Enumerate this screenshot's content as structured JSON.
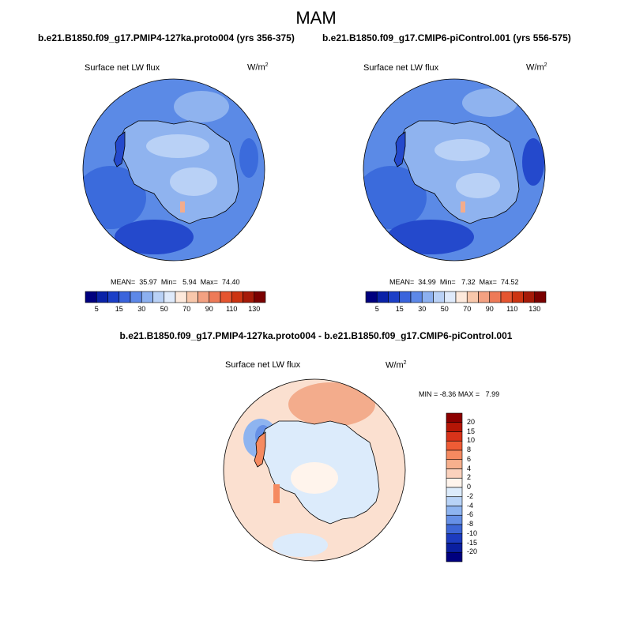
{
  "figure": {
    "season": "MAM",
    "colors": {
      "c_3": "#2449cc",
      "c_4": "#3b6bdc",
      "c_5": "#5b8ae6",
      "c_6": "#8fb3ef",
      "c_8": "#f4cdb4",
      "c_9": "#f3ac8c",
      "c_10": "#ee7c5a",
      "c_11": "#e24a2a",
      "c_12": "#c52d15"
    }
  },
  "panel_left": {
    "case": "b.e21.B1850.f09_g17.PMIP4-127ka.proto004 (yrs 356-375)",
    "variable": "Surface net LW flux",
    "units": "W/m",
    "units_exp": "2",
    "mean_label": "MEAN=",
    "mean": "35.97",
    "min_label": "Min=",
    "min": "5.94",
    "max_label": "Max=",
    "max": "74.40"
  },
  "panel_right": {
    "case": "b.e21.B1850.f09_g17.CMIP6-piControl.001 (yrs 556-575)",
    "variable": "Surface net LW flux",
    "units": "W/m",
    "units_exp": "2",
    "mean_label": "MEAN=",
    "mean": "34.99",
    "min_label": "Min=",
    "min": "7.32",
    "max_label": "Max=",
    "max": "74.52"
  },
  "colorbar_horizontal": {
    "labels": [
      "5",
      "15",
      "30",
      "50",
      "70",
      "90",
      "110",
      "130"
    ],
    "colors": [
      "#00007f",
      "#0a22a8",
      "#1c3fc7",
      "#3a64dc",
      "#5d88e8",
      "#8cb0f0",
      "#b9d1f6",
      "#dfeafb",
      "#fde9dc",
      "#f8c7ab",
      "#f3a182",
      "#ee7a58",
      "#e55530",
      "#cc3412",
      "#a51a08",
      "#7a0000"
    ]
  },
  "panel_diff": {
    "title": "b.e21.B1850.f09_g17.PMIP4-127ka.proto004 - b.e21.B1850.f09_g17.CMIP6-piControl.001",
    "variable": "Surface net LW flux",
    "units": "W/m",
    "units_exp": "2",
    "min_label": "MIN =",
    "min": "-8.36",
    "max_label": "MAX =",
    "max": "7.99"
  },
  "colorbar_vertical": {
    "labels": [
      "20",
      "15",
      "10",
      "8",
      "6",
      "4",
      "2",
      "0",
      "-2",
      "-4",
      "-6",
      "-8",
      "-10",
      "-15",
      "-20"
    ],
    "colors": [
      "#8c0000",
      "#b51606",
      "#d8331a",
      "#ef5c35",
      "#f58a60",
      "#f7b08d",
      "#fbd2bd",
      "#fff4ec",
      "#dcebfb",
      "#b8d3f7",
      "#8eb4f0",
      "#6690e6",
      "#3d66d6",
      "#1c3bbf",
      "#0a1fa0",
      "#00007f"
    ]
  },
  "chart_data": {
    "type": "heatmap",
    "projection": "south-polar stereographic",
    "panels": [
      {
        "name": "PMIP4-127ka.proto004",
        "variable": "Surface net LW flux",
        "units": "W/m2",
        "mean": 35.97,
        "min": 5.94,
        "max": 74.4,
        "contour_levels": [
          5,
          15,
          30,
          50,
          70,
          90,
          110,
          130
        ]
      },
      {
        "name": "CMIP6-piControl.001",
        "variable": "Surface net LW flux",
        "units": "W/m2",
        "mean": 34.99,
        "min": 7.32,
        "max": 74.52,
        "contour_levels": [
          5,
          15,
          30,
          50,
          70,
          90,
          110,
          130
        ]
      },
      {
        "name": "difference",
        "variable": "Surface net LW flux",
        "units": "W/m2",
        "min": -8.36,
        "max": 7.99,
        "contour_levels": [
          -20,
          -15,
          -10,
          -8,
          -6,
          -4,
          -2,
          0,
          2,
          4,
          6,
          8,
          10,
          15,
          20
        ]
      }
    ]
  }
}
